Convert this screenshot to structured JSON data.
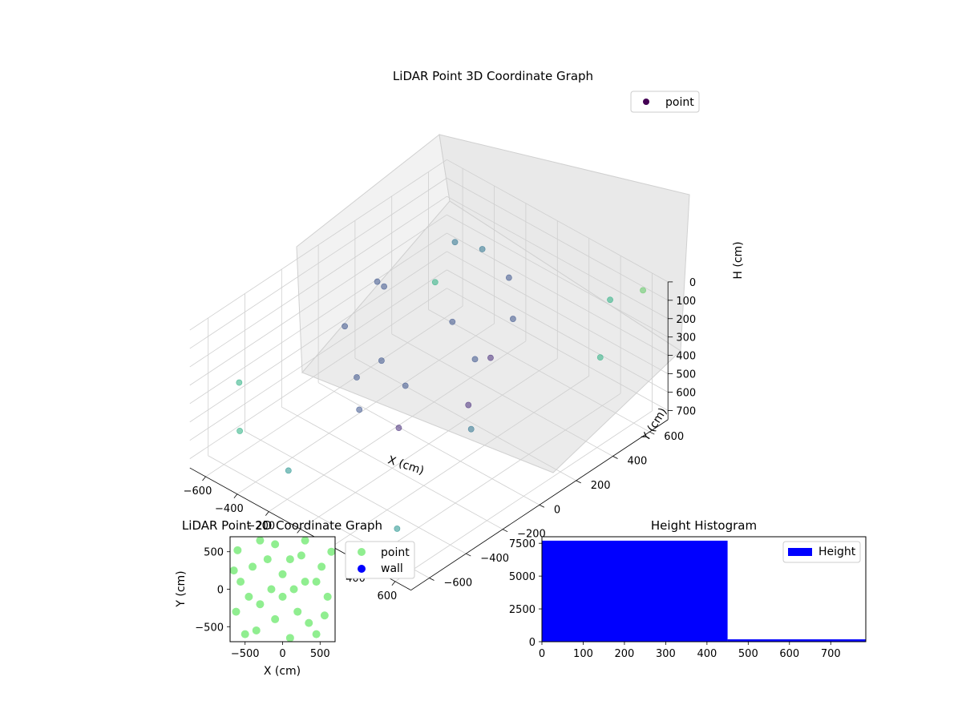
{
  "chart_data": [
    {
      "type": "scatter",
      "title": "LiDAR Point 3D Coordinate Graph",
      "xlabel": "X (cm)",
      "ylabel": "Y (cm)",
      "zlabel": "H (cm)",
      "xlim": [
        -700,
        700
      ],
      "ylim": [
        -700,
        700
      ],
      "zlim": [
        0,
        750
      ],
      "z_inverted": true,
      "xticks": [
        -600,
        -400,
        -200,
        0,
        200,
        400,
        600
      ],
      "yticks": [
        -600,
        -400,
        -200,
        0,
        200,
        400,
        600
      ],
      "zticks": [
        0,
        100,
        200,
        300,
        400,
        500,
        600,
        700
      ],
      "grid": true,
      "colormap": [
        "#440154",
        "#472c7a",
        "#3b528b",
        "#2c728e",
        "#21918c",
        "#28ae80",
        "#5ec962"
      ],
      "legend": {
        "position": "top-right",
        "entries": [
          {
            "name": "point",
            "color": "#440154"
          }
        ]
      },
      "series": [
        {
          "name": "point",
          "points_xyz": [
            [
              -420,
              80,
              120
            ],
            [
              -300,
              400,
              60
            ],
            [
              -150,
              420,
              40
            ],
            [
              100,
              350,
              30
            ],
            [
              300,
              200,
              60
            ],
            [
              350,
              -50,
              90
            ],
            [
              200,
              -300,
              140
            ],
            [
              -50,
              -350,
              180
            ],
            [
              -300,
              -200,
              120
            ],
            [
              -400,
              100,
              150
            ],
            [
              -200,
              300,
              380
            ],
            [
              100,
              250,
              400
            ],
            [
              250,
              0,
              420
            ],
            [
              100,
              -250,
              450
            ],
            [
              -150,
              -250,
              470
            ],
            [
              -300,
              0,
              440
            ],
            [
              -620,
              -500,
              380
            ],
            [
              -500,
              -600,
              520
            ],
            [
              600,
              650,
              60
            ],
            [
              450,
              600,
              150
            ],
            [
              620,
              400,
              250
            ],
            [
              500,
              -200,
              300
            ],
            [
              -600,
              550,
              520
            ],
            [
              380,
              -500,
              700
            ],
            [
              -250,
              -550,
              650
            ]
          ]
        }
      ]
    },
    {
      "type": "scatter",
      "title": "LiDAR Point 2D Coordinate Graph",
      "xlabel": "X (cm)",
      "ylabel": "Y (cm)",
      "xlim": [
        -700,
        700
      ],
      "ylim": [
        -700,
        700
      ],
      "xticks": [
        -500,
        0,
        500
      ],
      "yticks": [
        -500,
        0,
        500
      ],
      "legend": {
        "position": "outside-right",
        "entries": [
          {
            "name": "point",
            "color": "#90ee90"
          },
          {
            "name": "wall",
            "color": "#0000ff"
          }
        ]
      },
      "series": [
        {
          "name": "point",
          "color": "#90ee90",
          "points_xy": [
            [
              -600,
              520
            ],
            [
              -650,
              250
            ],
            [
              -560,
              100
            ],
            [
              -620,
              -300
            ],
            [
              -500,
              -600
            ],
            [
              -300,
              650
            ],
            [
              -350,
              -550
            ],
            [
              -100,
              600
            ],
            [
              100,
              -650
            ],
            [
              300,
              650
            ],
            [
              450,
              -600
            ],
            [
              520,
              300
            ],
            [
              600,
              -100
            ],
            [
              650,
              500
            ],
            [
              560,
              -350
            ],
            [
              -400,
              300
            ],
            [
              -300,
              -200
            ],
            [
              -200,
              400
            ],
            [
              -100,
              -400
            ],
            [
              0,
              200
            ],
            [
              0,
              -100
            ],
            [
              100,
              400
            ],
            [
              200,
              -300
            ],
            [
              300,
              100
            ],
            [
              350,
              -450
            ],
            [
              -450,
              -100
            ],
            [
              450,
              100
            ],
            [
              -150,
              0
            ],
            [
              150,
              0
            ],
            [
              250,
              450
            ]
          ]
        },
        {
          "name": "wall",
          "color": "#0000ff",
          "points_xy": []
        }
      ]
    },
    {
      "type": "bar",
      "title": "Height Histogram",
      "xlabel": "",
      "ylabel": "",
      "xlim": [
        0,
        785
      ],
      "ylim": [
        0,
        8000
      ],
      "xticks": [
        0,
        100,
        200,
        300,
        400,
        500,
        600,
        700
      ],
      "yticks": [
        0,
        2500,
        5000,
        7500
      ],
      "legend": {
        "position": "top-right",
        "entries": [
          {
            "name": "Height",
            "color": "#0000ff"
          }
        ]
      },
      "series": [
        {
          "name": "Height",
          "color": "#0000ff",
          "bins": [
            {
              "from": 0,
              "to": 450,
              "count": 7700
            },
            {
              "from": 450,
              "to": 785,
              "count": 180
            }
          ]
        }
      ]
    }
  ]
}
